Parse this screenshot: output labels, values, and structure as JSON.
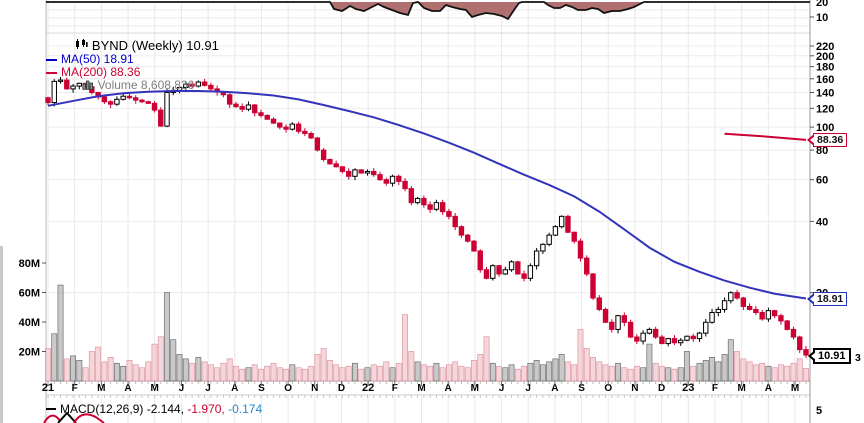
{
  "legend": {
    "symbol_title": "BYND (Weekly) 10.91",
    "ma50_label": "MA(50) 18.91",
    "ma200_label": "MA(200) 88.36",
    "volume_label": "Volume 8,608,836"
  },
  "macd_legend": {
    "main": "MACD(12,26,9) -2.144,",
    "signal": " -1.970,",
    "hist": " -0.174"
  },
  "callouts": {
    "ma200": "88.36",
    "ma50": "18.91",
    "last": "10.91"
  },
  "axes": {
    "price_labels": [
      220,
      200,
      180,
      160,
      140,
      120,
      100,
      80,
      60,
      40,
      20
    ],
    "volume_labels": [
      "80M",
      "60M",
      "40M",
      "20M"
    ],
    "months": [
      "21",
      "F",
      "M",
      "A",
      "M",
      "J",
      "J",
      "A",
      "S",
      "O",
      "N",
      "D",
      "22",
      "F",
      "M",
      "A",
      "M",
      "J",
      "J",
      "A",
      "S",
      "O",
      "N",
      "D",
      "23",
      "F",
      "M",
      "A",
      "M"
    ],
    "top_panel_labels": [
      "20",
      "10"
    ],
    "macd_scale_label": "5",
    "edge_label": "3"
  },
  "colors": {
    "red": "#cc0033",
    "blue_line": "#3333bb",
    "legend_blue": "#0000cc",
    "macd_blue": "#2288cc",
    "gray_text": "#808080",
    "vol_up_fill": "#a8a8a8",
    "vol_up_stroke": "#6e6e6e",
    "vol_down_fill": "#f1c8cf",
    "vol_down_stroke": "#dc96a2",
    "top_area_fill": "#a35757",
    "grid": "#e8e8e8"
  },
  "chart_data": {
    "type": "candlestick",
    "symbol": "BYND",
    "timeframe": "Weekly",
    "title": "BYND (Weekly) 10.91",
    "last_price": 10.91,
    "ma50_value": 18.91,
    "ma200_value": 88.36,
    "last_volume_text": "8,608,836",
    "ylog": true,
    "ylim": [
      10,
      230
    ],
    "price_ticks": [
      220,
      200,
      180,
      160,
      140,
      120,
      100,
      80,
      60,
      40,
      20
    ],
    "volume_ticks_m": [
      80,
      60,
      40,
      20
    ],
    "x_labels": [
      "21",
      "F",
      "M",
      "A",
      "M",
      "J",
      "J",
      "A",
      "S",
      "O",
      "N",
      "D",
      "22",
      "F",
      "M",
      "A",
      "M",
      "J",
      "J",
      "A",
      "S",
      "O",
      "N",
      "D",
      "23",
      "F",
      "M",
      "A",
      "M"
    ],
    "weekly_closes": [
      127,
      156,
      158,
      145,
      149,
      153,
      148,
      140,
      134,
      128,
      125,
      131,
      135,
      133,
      130,
      128,
      126,
      118,
      101,
      140,
      143,
      147,
      152,
      149,
      155,
      150,
      145,
      141,
      137,
      125,
      122,
      119,
      124,
      115,
      112,
      108,
      104,
      100,
      98,
      103,
      96,
      94,
      90,
      80,
      73,
      70,
      68,
      65,
      62,
      66,
      64,
      65,
      63,
      60,
      58,
      62,
      59,
      55,
      48,
      50,
      47,
      45,
      48,
      44,
      42,
      38,
      35,
      33,
      30,
      25,
      23,
      26,
      24,
      25,
      27,
      24,
      23,
      26,
      30,
      32,
      35,
      38,
      42,
      36,
      33,
      28,
      24,
      19,
      17,
      15,
      14,
      16,
      15,
      13,
      12.5,
      13.5,
      14,
      13,
      12.2,
      12.8,
      12.3,
      12.6,
      13.1,
      12.8,
      13.5,
      15,
      16.5,
      17,
      18.5,
      20,
      19,
      17.5,
      17,
      16.5,
      15.5,
      16.8,
      16,
      15.2,
      14,
      13,
      11.5,
      10.91
    ],
    "weekly_volumes_m": [
      22,
      32,
      65,
      15,
      17,
      14,
      9,
      20,
      23,
      13,
      16,
      12,
      10,
      14,
      11,
      9,
      13,
      25,
      30,
      60,
      28,
      18,
      15,
      12,
      16,
      13,
      11,
      9,
      12,
      15,
      10,
      8,
      9,
      11,
      8,
      10,
      12,
      9,
      8,
      11,
      9,
      8,
      10,
      18,
      22,
      14,
      11,
      9,
      10,
      12,
      8,
      9,
      11,
      10,
      13,
      9,
      12,
      45,
      20,
      13,
      11,
      10,
      12,
      9,
      11,
      13,
      10,
      9,
      14,
      18,
      30,
      12,
      10,
      9,
      11,
      8,
      10,
      12,
      14,
      11,
      13,
      15,
      18,
      13,
      11,
      35,
      22,
      16,
      13,
      11,
      10,
      12,
      9,
      8,
      10,
      9,
      25,
      12,
      10,
      9,
      8,
      9,
      20,
      10,
      12,
      14,
      16,
      13,
      18,
      28,
      20,
      15,
      13,
      11,
      12,
      10,
      9,
      11,
      10,
      12,
      15,
      8.6
    ],
    "ma50_points": [
      [
        0,
        123
      ],
      [
        4,
        129
      ],
      [
        8,
        135
      ],
      [
        12,
        139
      ],
      [
        16,
        141
      ],
      [
        20,
        142
      ],
      [
        24,
        142
      ],
      [
        28,
        141
      ],
      [
        32,
        139
      ],
      [
        36,
        136
      ],
      [
        40,
        131
      ],
      [
        44,
        124
      ],
      [
        48,
        117
      ],
      [
        52,
        110
      ],
      [
        56,
        102
      ],
      [
        60,
        94
      ],
      [
        64,
        86
      ],
      [
        68,
        78
      ],
      [
        72,
        70
      ],
      [
        76,
        63
      ],
      [
        80,
        57
      ],
      [
        84,
        51
      ],
      [
        88,
        44
      ],
      [
        92,
        37
      ],
      [
        96,
        31
      ],
      [
        100,
        27
      ],
      [
        104,
        24.5
      ],
      [
        108,
        22.5
      ],
      [
        112,
        21
      ],
      [
        116,
        19.8
      ],
      [
        121,
        18.91
      ]
    ],
    "ma200_points": [
      [
        108,
        93.8
      ],
      [
        114,
        91.5
      ],
      [
        121,
        88.36
      ]
    ],
    "macd": {
      "params": "12,26,9",
      "macd": -2.144,
      "signal": -1.97,
      "hist": -0.174
    },
    "top_indicator_dips": [
      [
        330,
        0
      ],
      [
        334,
        7
      ],
      [
        342,
        9
      ],
      [
        350,
        4
      ],
      [
        356,
        7
      ],
      [
        364,
        9
      ],
      [
        372,
        5
      ],
      [
        378,
        2
      ],
      [
        384,
        5
      ],
      [
        392,
        8
      ],
      [
        400,
        11
      ],
      [
        408,
        13
      ],
      [
        413,
        1
      ],
      [
        418,
        0
      ],
      [
        424,
        6
      ],
      [
        432,
        9
      ],
      [
        440,
        9
      ],
      [
        446,
        3
      ],
      [
        452,
        5
      ],
      [
        460,
        7
      ],
      [
        466,
        8
      ],
      [
        472,
        15
      ],
      [
        478,
        13
      ],
      [
        486,
        11
      ],
      [
        494,
        12
      ],
      [
        502,
        14
      ],
      [
        508,
        17
      ],
      [
        514,
        8
      ],
      [
        519,
        1
      ],
      [
        522,
        0
      ],
      [
        544,
        0
      ],
      [
        548,
        3
      ],
      [
        554,
        6
      ],
      [
        560,
        6
      ],
      [
        566,
        3
      ],
      [
        572,
        5
      ],
      [
        578,
        8
      ],
      [
        586,
        8
      ],
      [
        592,
        6
      ],
      [
        598,
        7
      ],
      [
        604,
        11
      ],
      [
        612,
        9
      ],
      [
        620,
        9
      ],
      [
        628,
        7
      ],
      [
        634,
        5
      ],
      [
        640,
        2
      ],
      [
        644,
        0
      ]
    ]
  }
}
